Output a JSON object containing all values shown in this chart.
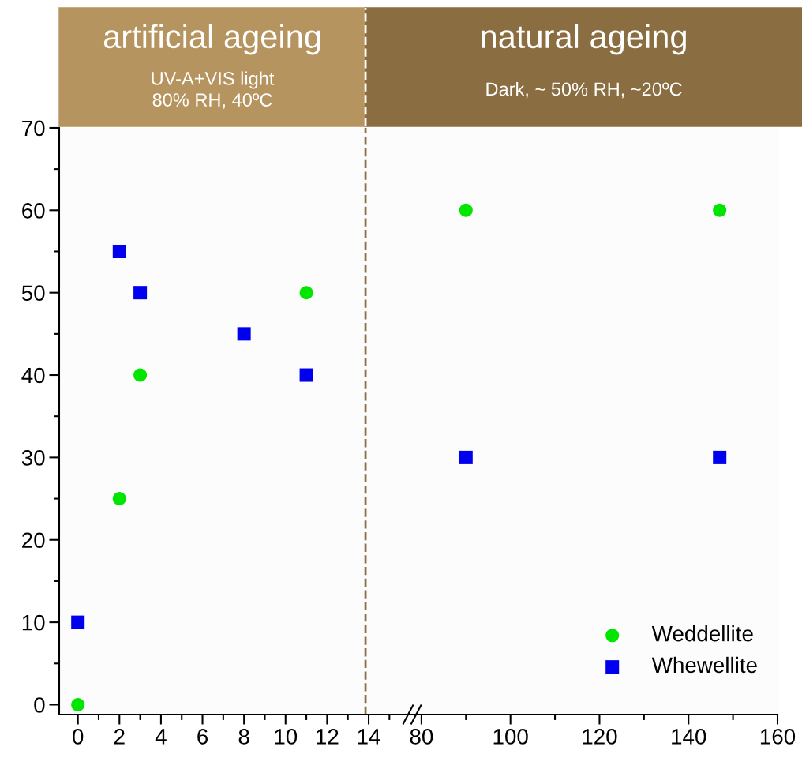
{
  "chart_data": [
    {
      "type": "scatter",
      "title": "artificial ageing",
      "subtitle": "UV-A+VIS light\n80% RH, 40ºC",
      "series": [
        {
          "color": "#00e600",
          "marker": "circle",
          "x": [
            0,
            2,
            3,
            11
          ],
          "values": [
            0,
            25,
            40,
            50
          ]
        },
        {
          "color": "#0000ee",
          "marker": "square",
          "x": [
            0,
            2,
            3,
            8,
            11
          ],
          "values": [
            10,
            55,
            50,
            45,
            40
          ]
        }
      ],
      "xlim": [
        -0.9,
        15.9
      ],
      "xticks": [
        0,
        {
          "value": 1,
          "label": null
        },
        2,
        {
          "value": 3,
          "label": null
        },
        4,
        {
          "value": 5,
          "label": null
        },
        6,
        {
          "value": 7,
          "label": null
        },
        8,
        {
          "value": 9,
          "label": null
        },
        10,
        {
          "value": 11,
          "label": null
        },
        12,
        {
          "value": 13,
          "label": null
        },
        14,
        {
          "value": 15,
          "label": null
        }
      ],
      "ylim": [
        -1.2,
        70
      ],
      "yticks": [
        0,
        {
          "value": 5,
          "label": null
        },
        10,
        {
          "value": 15,
          "label": null
        },
        20,
        {
          "value": 25,
          "label": null
        },
        30,
        {
          "value": 35,
          "label": null
        },
        40,
        {
          "value": 45,
          "label": null
        },
        50,
        {
          "value": 55,
          "label": null
        },
        60,
        {
          "value": 65,
          "label": null
        },
        70
      ],
      "ref_lines": [
        {
          "axis": "x",
          "value": 13.85,
          "color": "#8b7048",
          "line_style": "dashed"
        }
      ],
      "grid": false,
      "legend": false
    },
    {
      "type": "scatter",
      "title": "natural ageing",
      "subtitle": "Dark, ~ 50% RH, ~20ºC",
      "series": [
        {
          "name": "Weddellite",
          "color": "#00e600",
          "marker": "circle",
          "x": [
            90,
            147
          ],
          "values": [
            60,
            60
          ]
        },
        {
          "name": "Whewellite",
          "color": "#0000ee",
          "marker": "square",
          "x": [
            90,
            147
          ],
          "values": [
            30,
            30
          ]
        }
      ],
      "xlim": [
        77,
        160
      ],
      "xticks": [
        80,
        {
          "value": 90,
          "label": null
        },
        100,
        {
          "value": 110,
          "label": null
        },
        120,
        {
          "value": 130,
          "label": null
        },
        140,
        {
          "value": 150,
          "label": null
        },
        160
      ],
      "ylim": [
        -1.2,
        70
      ],
      "tick_labels": "x",
      "grid": false,
      "legend": "bottom right"
    }
  ]
}
